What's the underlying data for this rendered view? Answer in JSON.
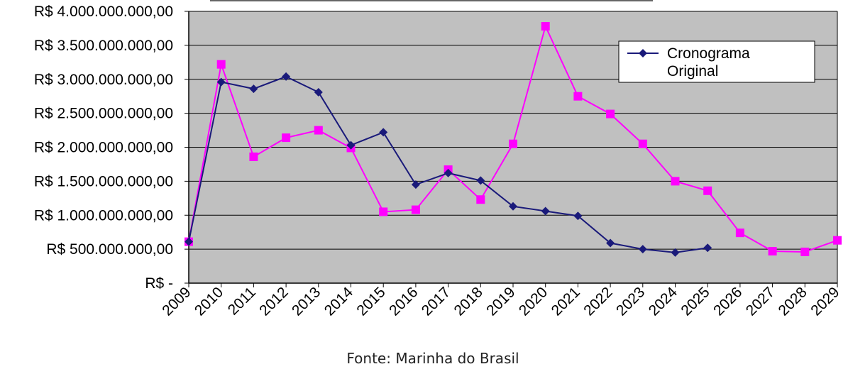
{
  "chart_data": {
    "type": "line",
    "x": [
      "2009",
      "2010",
      "2011",
      "2012",
      "2013",
      "2014",
      "2015",
      "2016",
      "2017",
      "2018",
      "2019",
      "2020",
      "2021",
      "2022",
      "2023",
      "2024",
      "2025",
      "2026",
      "2027",
      "2028",
      "2029"
    ],
    "ylim": [
      0,
      4000000000
    ],
    "yticks": [
      0,
      500000000,
      1000000000,
      1500000000,
      2000000000,
      2500000000,
      3000000000,
      3500000000,
      4000000000
    ],
    "ytick_labels": [
      "R$ -",
      "R$ 500.000.000,00",
      "R$ 1.000.000.000,00",
      "R$ 1.500.000.000,00",
      "R$ 2.000.000.000,00",
      "R$ 2.500.000.000,00",
      "R$ 3.000.000.000,00",
      "R$ 3.500.000.000,00",
      "R$ 4.000.000.000,00"
    ],
    "grid": true,
    "legend_position": "top-right",
    "series": [
      {
        "name": "Cronograma Original",
        "color": "#1a1a7a",
        "marker": "diamond",
        "values": [
          610000000,
          2960000000,
          2860000000,
          3040000000,
          2810000000,
          2030000000,
          2220000000,
          1450000000,
          1620000000,
          1510000000,
          1130000000,
          1060000000,
          990000000,
          590000000,
          500000000,
          450000000,
          520000000,
          null,
          null,
          null,
          null
        ]
      },
      {
        "name": "",
        "color": "#ff00ff",
        "marker": "square",
        "values": [
          610000000,
          3220000000,
          1860000000,
          2140000000,
          2250000000,
          1990000000,
          1050000000,
          1080000000,
          1670000000,
          1230000000,
          2050000000,
          3780000000,
          2750000000,
          2490000000,
          2050000000,
          1500000000,
          1360000000,
          740000000,
          470000000,
          460000000,
          630000000
        ]
      }
    ],
    "legend_lines": [
      "Cronograma",
      "Original"
    ],
    "source": "Fonte: Marinha do Brasil",
    "plot_bg": "#c0c0c0"
  }
}
